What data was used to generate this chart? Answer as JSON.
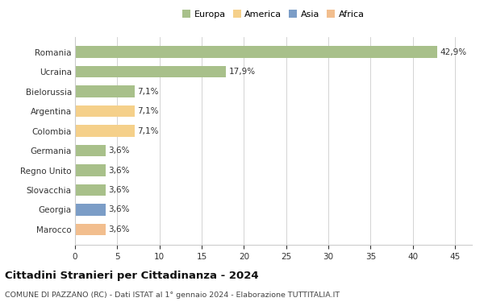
{
  "categories": [
    "Marocco",
    "Georgia",
    "Slovacchia",
    "Regno Unito",
    "Germania",
    "Colombia",
    "Argentina",
    "Bielorussia",
    "Ucraina",
    "Romania"
  ],
  "values": [
    3.6,
    3.6,
    3.6,
    3.6,
    3.6,
    7.1,
    7.1,
    7.1,
    17.9,
    42.9
  ],
  "colors": [
    "#f2be8e",
    "#7b9dc7",
    "#a8c08a",
    "#a8c08a",
    "#a8c08a",
    "#f5d08a",
    "#f5d08a",
    "#a8c08a",
    "#a8c08a",
    "#a8c08a"
  ],
  "labels": [
    "3,6%",
    "3,6%",
    "3,6%",
    "3,6%",
    "3,6%",
    "7,1%",
    "7,1%",
    "7,1%",
    "17,9%",
    "42,9%"
  ],
  "xlim": [
    0,
    47
  ],
  "xticks": [
    0,
    5,
    10,
    15,
    20,
    25,
    30,
    35,
    40,
    45
  ],
  "title": "Cittadini Stranieri per Cittadinanza - 2024",
  "subtitle": "COMUNE DI PAZZANO (RC) - Dati ISTAT al 1° gennaio 2024 - Elaborazione TUTTITALIA.IT",
  "legend_labels": [
    "Europa",
    "America",
    "Asia",
    "Africa"
  ],
  "legend_colors": [
    "#a8c08a",
    "#f5d08a",
    "#7b9dc7",
    "#f2be8e"
  ],
  "bar_height": 0.6,
  "background_color": "#ffffff",
  "grid_color": "#cccccc",
  "text_color": "#333333",
  "label_fontsize": 7.5,
  "ytick_fontsize": 7.5,
  "xtick_fontsize": 7.5,
  "legend_fontsize": 8,
  "title_fontsize": 9.5,
  "subtitle_fontsize": 6.8
}
